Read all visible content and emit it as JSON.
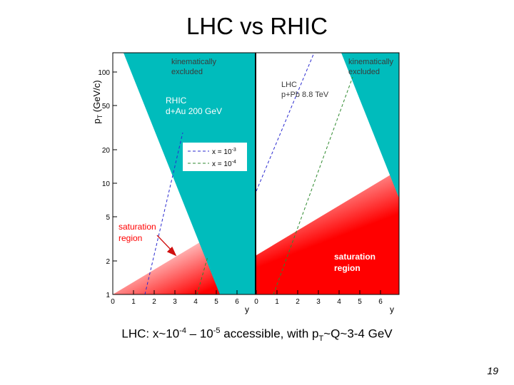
{
  "slide": {
    "title": "LHC vs RHIC",
    "caption": {
      "prefix": "LHC: x~10",
      "exp1": "-4",
      "dash": " – 10",
      "exp2": "-5",
      "middle": " accessible, with p",
      "sub": "T",
      "suffix": "~Q~3-4 GeV"
    },
    "page_number": "19"
  },
  "figure": {
    "y_axis_label": {
      "main": "p",
      "sub": "T",
      "unit": " (GeV/c)"
    },
    "y_ticks": [
      "1",
      "2",
      "5",
      "10",
      "20",
      "50",
      "100"
    ],
    "x_ticks": [
      "0",
      "1",
      "2",
      "3",
      "4",
      "5",
      "6"
    ],
    "x_axis_label": "y",
    "left_panel": {
      "excluded_label": [
        "kinematically",
        "excluded"
      ],
      "collider_label": [
        "RHIC",
        "d+Au 200 GeV"
      ],
      "saturation_label": [
        "saturation",
        "region"
      ],
      "legend": [
        {
          "label": "x = 10",
          "exp": "-3",
          "color": "#2a2ad0"
        },
        {
          "label": "x = 10",
          "exp": "-4",
          "color": "#2f8a2f"
        }
      ]
    },
    "right_panel": {
      "excluded_label": [
        "kinematically",
        "excluded"
      ],
      "collider_label": [
        "LHC",
        "p+Pb 8.8 TeV"
      ],
      "saturation_label": [
        "saturation",
        "region"
      ]
    },
    "colors": {
      "excluded": "#00bcbc",
      "saturation": "#ff0000",
      "frame": "#000000"
    }
  }
}
